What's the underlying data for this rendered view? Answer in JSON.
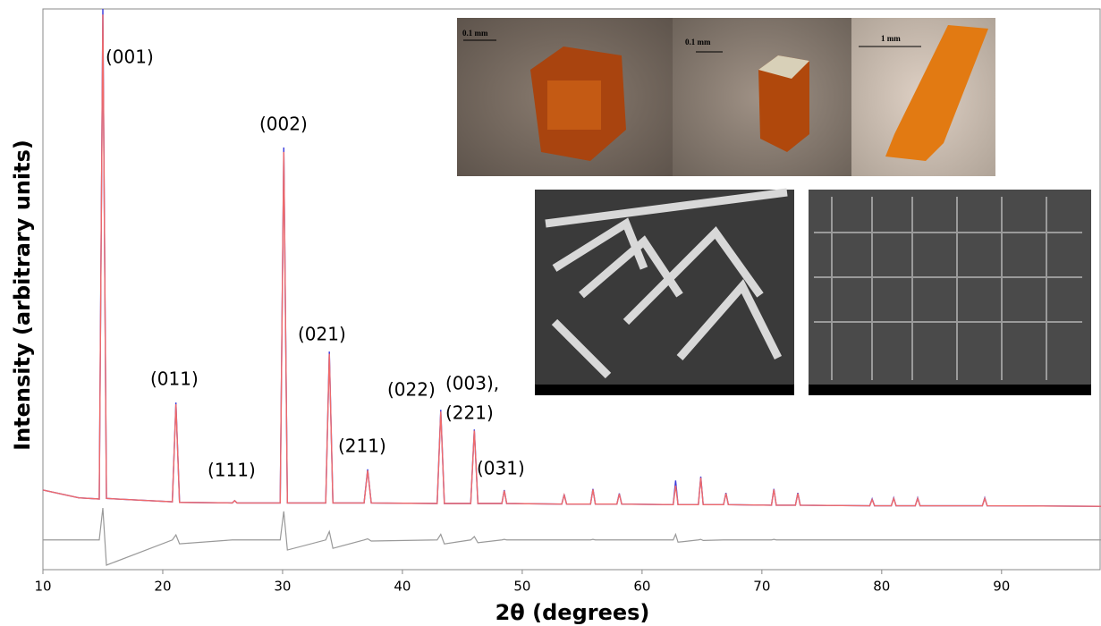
{
  "chart_data": {
    "type": "line",
    "xlabel": "2θ (degrees)",
    "ylabel": "Intensity (arbitrary units)",
    "xlim": [
      10,
      98.3
    ],
    "ylim": [
      0,
      100
    ],
    "xticks": [
      10,
      20,
      30,
      40,
      50,
      60,
      70,
      80,
      90
    ],
    "x": [
      10,
      13,
      14.7,
      15,
      15.3,
      20.8,
      21.1,
      21.4,
      25.8,
      26,
      26.2,
      29.8,
      30.1,
      30.4,
      33.6,
      33.9,
      34.2,
      36.8,
      37.1,
      37.4,
      42.9,
      43.2,
      43.5,
      45.7,
      46,
      46.3,
      48.3,
      48.5,
      48.7,
      53.3,
      53.5,
      53.7,
      55.7,
      55.9,
      56.1,
      57.9,
      58.1,
      58.3,
      62.6,
      62.8,
      63,
      64.7,
      64.9,
      65.1,
      66.8,
      67,
      67.2,
      70.8,
      71,
      71.2,
      72.8,
      73,
      73.2,
      79,
      79.2,
      79.4,
      80.8,
      81,
      81.2,
      82.8,
      83,
      83.2,
      88.4,
      88.6,
      88.8,
      98.3
    ],
    "series": [
      {
        "color": "#3b3bdc",
        "values": [
          14.2,
          12.8,
          12.6,
          100,
          12.7,
          12.1,
          29.8,
          12.0,
          11.9,
          12.3,
          11.9,
          11.9,
          75.3,
          11.9,
          11.9,
          38.9,
          11.9,
          11.9,
          17.9,
          11.9,
          11.8,
          28.5,
          11.8,
          11.8,
          25.0,
          11.8,
          11.8,
          14.2,
          11.8,
          11.7,
          13.4,
          11.7,
          11.7,
          14.4,
          11.7,
          11.7,
          13.6,
          11.7,
          11.6,
          15.9,
          11.6,
          11.6,
          16.6,
          11.6,
          11.6,
          13.7,
          11.6,
          11.5,
          14.4,
          11.5,
          11.5,
          13.7,
          11.5,
          11.4,
          12.6,
          11.4,
          11.4,
          12.8,
          11.4,
          11.4,
          12.8,
          11.4,
          11.4,
          12.8,
          11.4,
          11.3
        ]
      },
      {
        "color": "#f06a6a",
        "values": [
          14.2,
          12.8,
          12.6,
          99,
          12.7,
          12.1,
          29.5,
          12.0,
          11.9,
          12.3,
          11.9,
          11.9,
          74.5,
          11.9,
          11.9,
          38.5,
          11.9,
          11.9,
          17.7,
          11.9,
          11.8,
          28.2,
          11.8,
          11.8,
          24.8,
          11.8,
          11.8,
          14.1,
          11.8,
          11.7,
          13.3,
          11.7,
          11.7,
          14.3,
          11.7,
          11.7,
          13.5,
          11.7,
          11.6,
          15.0,
          11.6,
          11.6,
          16.4,
          11.6,
          11.6,
          13.6,
          11.6,
          11.5,
          14.3,
          11.5,
          11.5,
          13.6,
          11.5,
          11.4,
          12.5,
          11.4,
          11.4,
          12.7,
          11.4,
          11.4,
          12.7,
          11.4,
          11.4,
          12.7,
          11.4,
          11.3
        ]
      },
      {
        "color": "#999999",
        "values": [
          5.3,
          5.3,
          5.3,
          11.0,
          0.8,
          5.3,
          6.2,
          4.6,
          5.3,
          5.3,
          5.3,
          5.3,
          10.4,
          3.5,
          5.3,
          6.8,
          3.8,
          5.3,
          5.5,
          5.1,
          5.3,
          6.3,
          4.6,
          5.3,
          5.9,
          4.8,
          5.3,
          5.4,
          5.3,
          5.3,
          5.3,
          5.3,
          5.3,
          5.4,
          5.3,
          5.3,
          5.3,
          5.3,
          5.3,
          6.3,
          4.9,
          5.3,
          5.4,
          5.2,
          5.3,
          5.3,
          5.3,
          5.3,
          5.4,
          5.3,
          5.3,
          5.3,
          5.3,
          5.3,
          5.3,
          5.3,
          5.3,
          5.3,
          5.3,
          5.3,
          5.3,
          5.3,
          5.3,
          5.3,
          5.3,
          5.3
        ]
      }
    ],
    "annotations": [
      {
        "text": "(001)",
        "x": 15
      },
      {
        "text": "(011)",
        "x": 21.1
      },
      {
        "text": "(111)",
        "x": 26
      },
      {
        "text": "(002)",
        "x": 30.1
      },
      {
        "text": "(021)",
        "x": 33.9
      },
      {
        "text": "(211)",
        "x": 37.1
      },
      {
        "text": "(022)",
        "x": 43.2
      },
      {
        "text": "(003),",
        "x": 46
      },
      {
        "text": "(221)",
        "x": 46
      },
      {
        "text": "(031)",
        "x": 48.5
      }
    ],
    "inset_labels": [
      "0.1 mm",
      "0.1 mm",
      "1 mm"
    ]
  }
}
